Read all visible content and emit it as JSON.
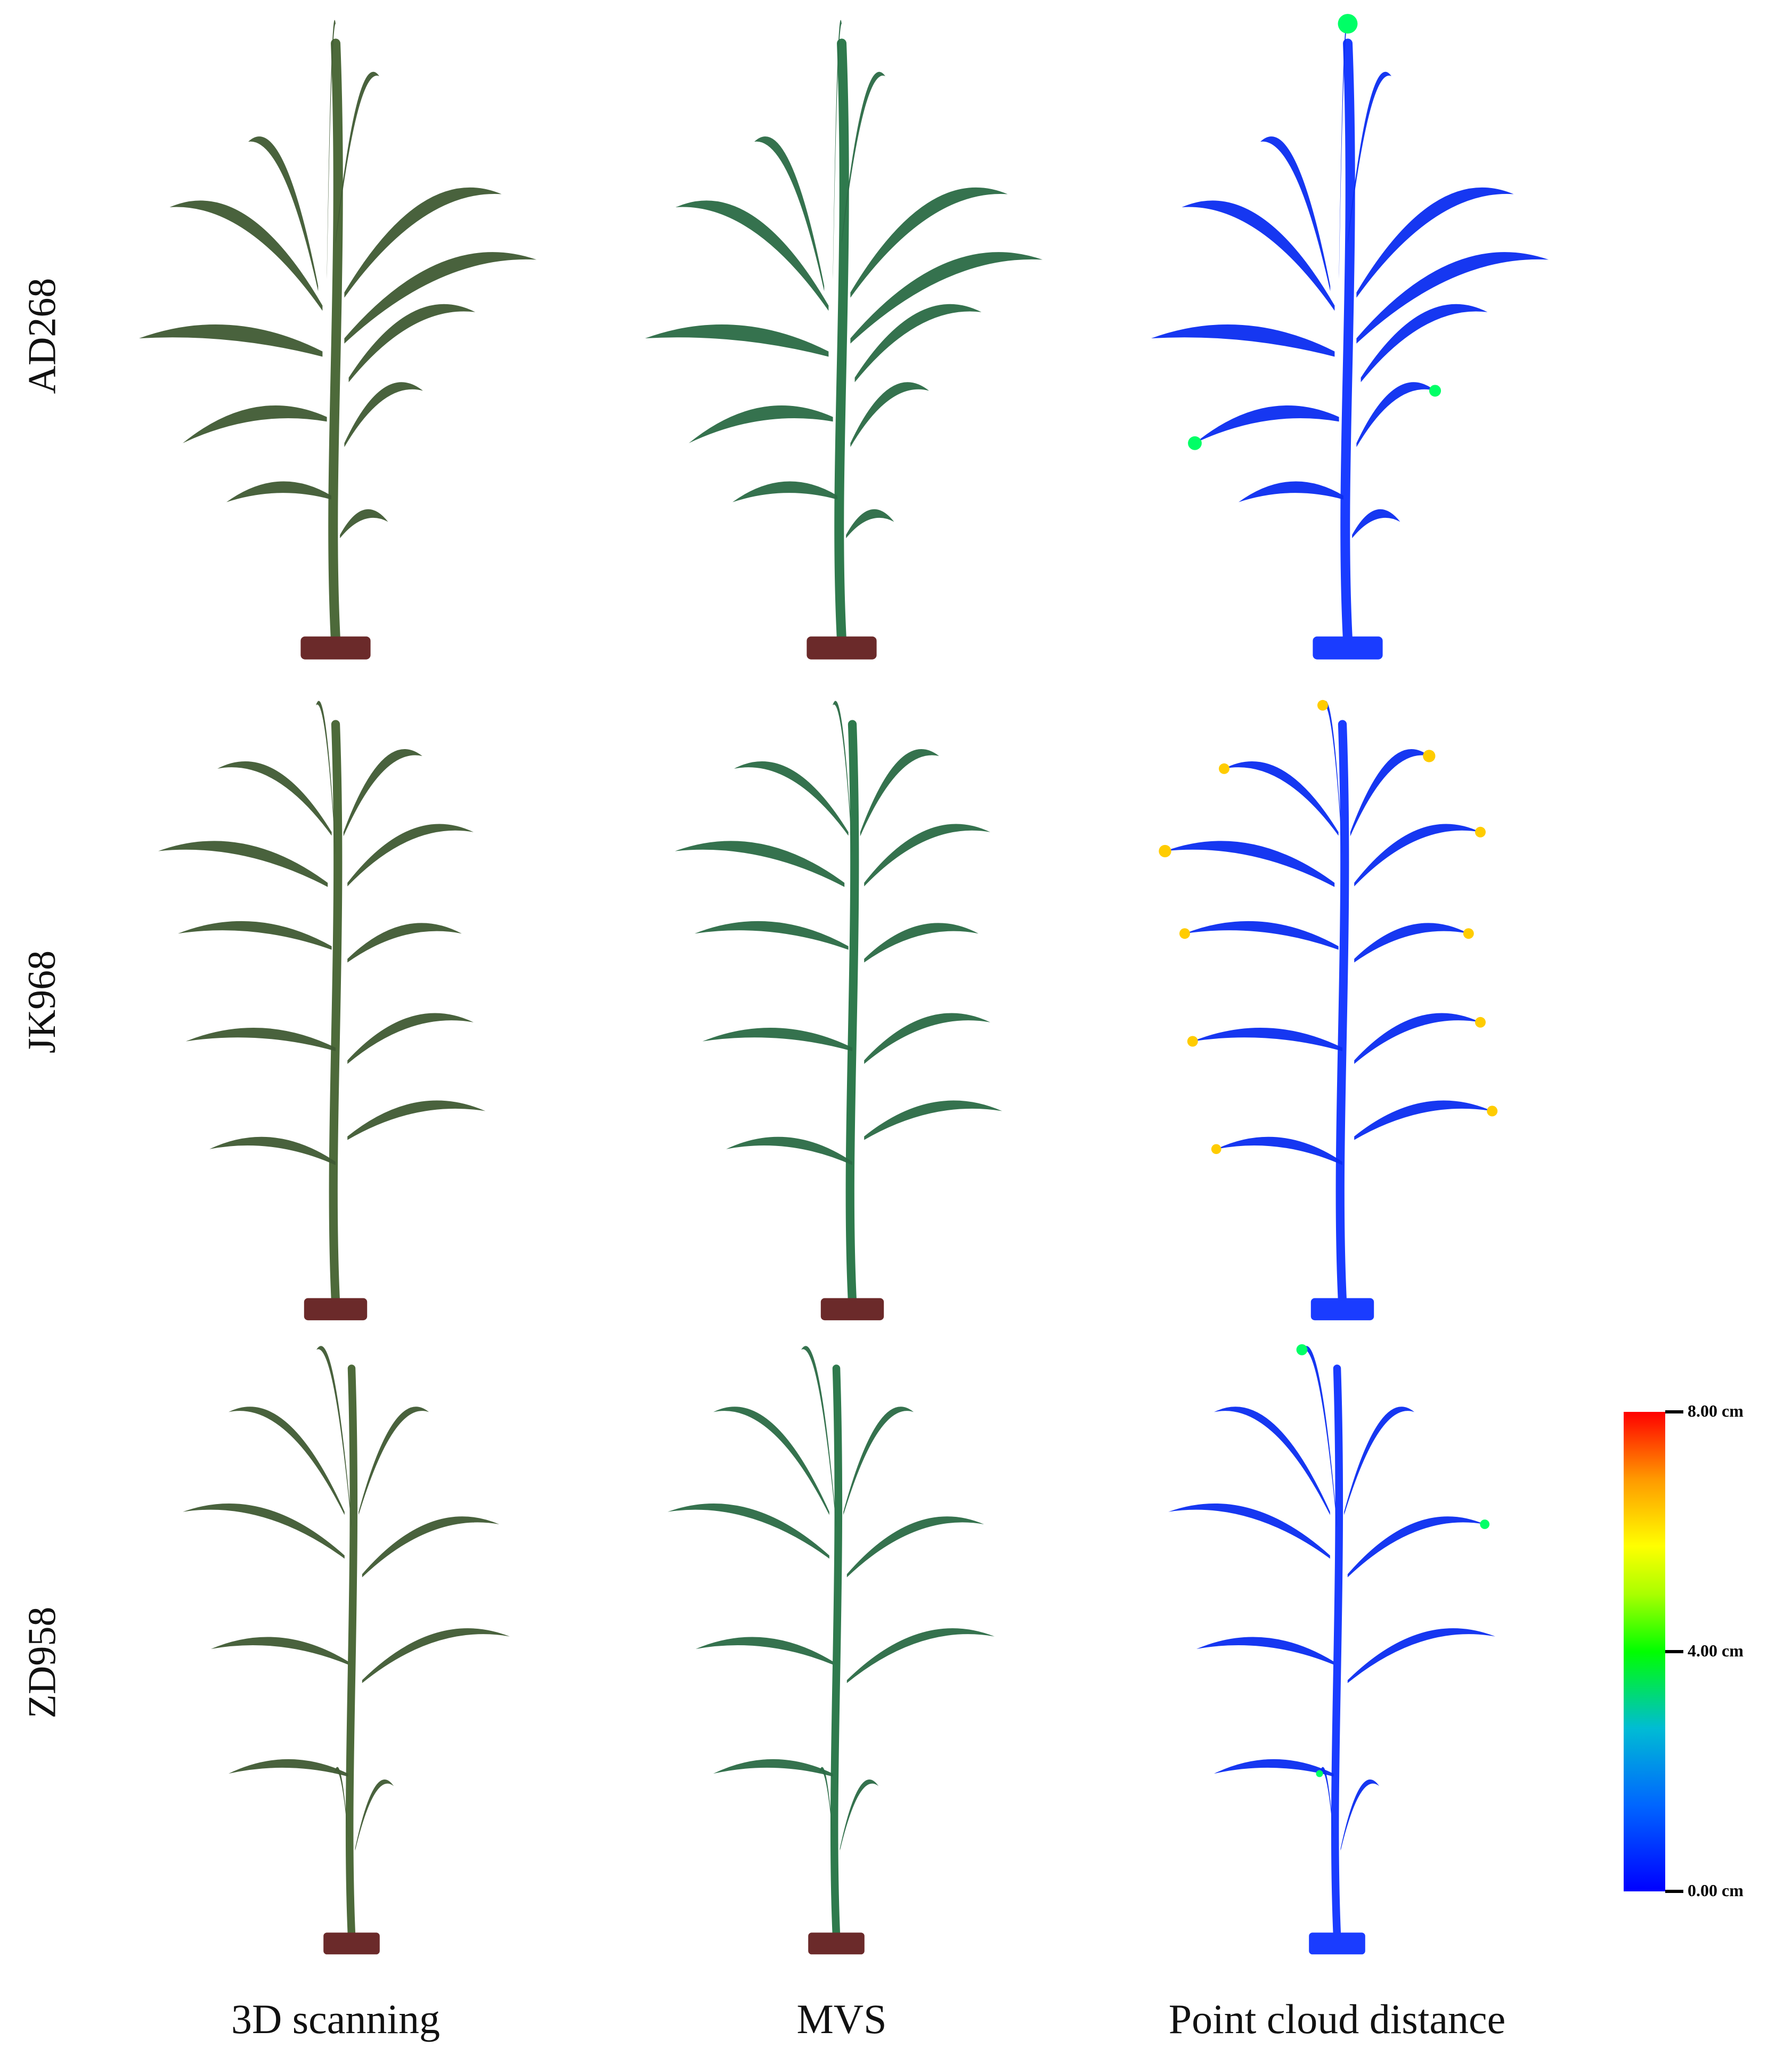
{
  "figure": {
    "rows": [
      {
        "label": "AD268"
      },
      {
        "label": "JK968"
      },
      {
        "label": "ZD958"
      }
    ],
    "columns": [
      {
        "label": "3D scanning"
      },
      {
        "label": "MVS"
      },
      {
        "label": "Point cloud distance"
      }
    ],
    "legend": {
      "title": "",
      "max_label": "8.00 cm",
      "mid_label": "4.00 cm",
      "min_label": "0.00 cm",
      "min_value": 0,
      "max_value": 8,
      "colors": [
        "#0000ff",
        "#00ff00",
        "#ffff00",
        "#ff0000"
      ]
    },
    "styles": {
      "scan": {
        "leaf": "#3f5a33",
        "stem": "#4d6a3a",
        "pot": "#6b2a2a"
      },
      "mvs": {
        "leaf": "#2a6a45",
        "stem": "#2f7a4d",
        "pot": "#6b2a2a"
      },
      "dist": {
        "leaf": "#0a2cf0",
        "stem": "#1a3cff",
        "pot": "#1a3cff"
      }
    }
  }
}
